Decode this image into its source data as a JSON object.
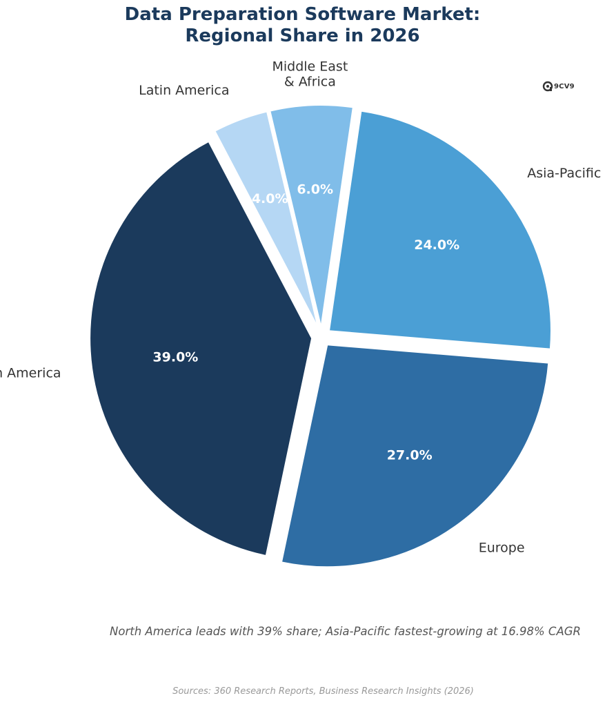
{
  "title_lines": [
    "Data Preparation Software Market:",
    "Regional Share in 2026"
  ],
  "logo": {
    "icon": "9cv9-logo-icon",
    "text": "9CV9"
  },
  "chart_data": {
    "type": "pie",
    "title": "Data Preparation Software Market: Regional Share in 2026",
    "slices": [
      {
        "label": "North America",
        "label_lines": [
          "North America"
        ],
        "value": 39.0,
        "pct_label": "39.0%",
        "color": "#1b3a5c",
        "pct_color": "#ffffff"
      },
      {
        "label": "Europe",
        "label_lines": [
          "Europe"
        ],
        "value": 27.0,
        "pct_label": "27.0%",
        "color": "#2e6da4",
        "pct_color": "#ffffff"
      },
      {
        "label": "Asia-Pacific",
        "label_lines": [
          "Asia-Pacific"
        ],
        "value": 24.0,
        "pct_label": "24.0%",
        "color": "#4b9fd5",
        "pct_color": "#ffffff"
      },
      {
        "label": "Middle East & Africa",
        "label_lines": [
          "Middle East",
          "& Africa"
        ],
        "value": 6.0,
        "pct_label": "6.0%",
        "color": "#80bde9",
        "pct_color": "#ffffff"
      },
      {
        "label": "Latin America",
        "label_lines": [
          "Latin America"
        ],
        "value": 4.0,
        "pct_label": "4.0%",
        "color": "#b5d7f4",
        "pct_color": "#ffffff"
      }
    ],
    "start_angle_deg": 0,
    "direction": "counterclockwise",
    "explode": true,
    "legend": "none"
  },
  "subtitle": "North America leads with 39% share; Asia-Pacific fastest-growing at 16.98% CAGR",
  "source": "Sources: 360 Research Reports, Business Research Insights (2026)"
}
